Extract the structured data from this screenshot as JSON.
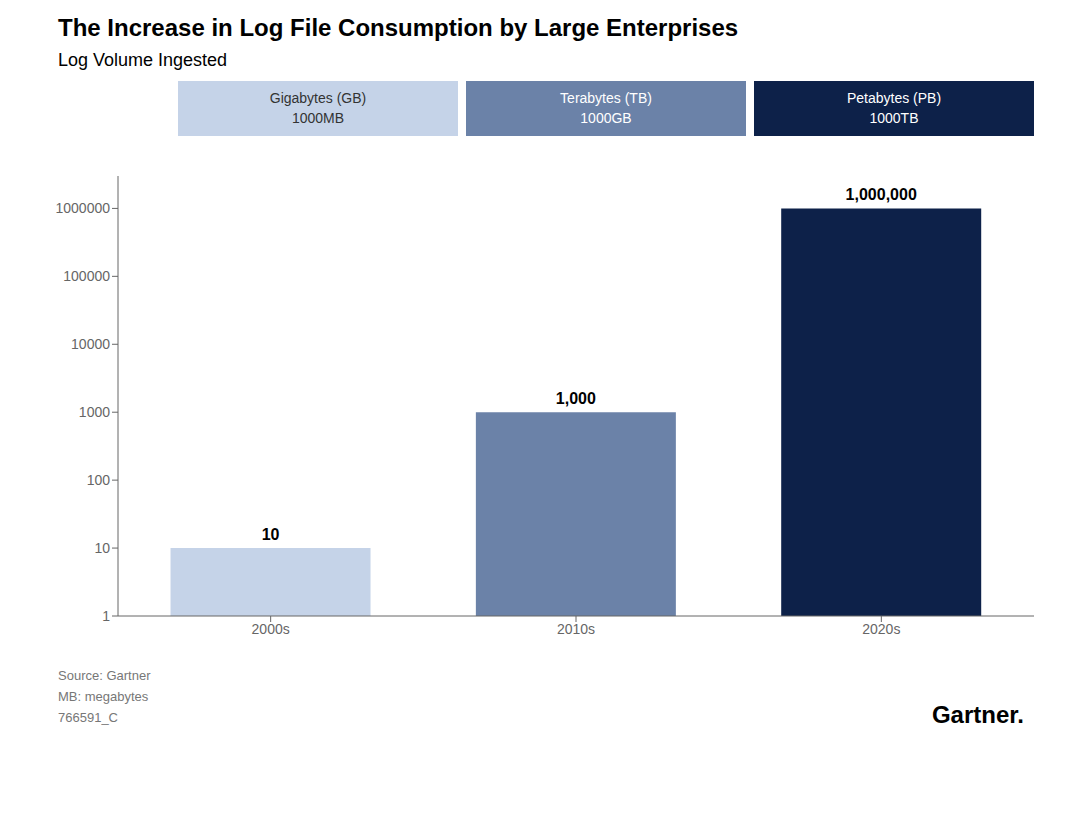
{
  "chart_data": {
    "type": "bar",
    "title": "The Increase in Log File Consumption by Large Enterprises",
    "subtitle": "Log Volume Ingested",
    "categories": [
      "2000s",
      "2010s",
      "2020s"
    ],
    "series": [
      {
        "name": "Gigabytes (GB)\n1000MB",
        "color": "#c5d3e8",
        "values": [
          10,
          null,
          null
        ],
        "value_labels": [
          "10",
          null,
          null
        ]
      },
      {
        "name": "Terabytes (TB)\n1000GB",
        "color": "#6b82a8",
        "values": [
          null,
          1000,
          null
        ],
        "value_labels": [
          null,
          "1,000",
          null
        ]
      },
      {
        "name": "Petabytes (PB)\n1000TB",
        "color": "#0d2149",
        "values": [
          null,
          null,
          1000000
        ],
        "value_labels": [
          null,
          null,
          "1,000,000"
        ]
      }
    ],
    "ylim": [
      1,
      3000000
    ],
    "yticks": [
      1,
      10,
      100,
      1000,
      10000,
      100000,
      1000000
    ],
    "log": "y",
    "grid": false,
    "data_labels": true,
    "legend": "top",
    "annotations": [
      "Source: Gartner\nMB: megabytes\n766591_C",
      "Gartner."
    ]
  }
}
